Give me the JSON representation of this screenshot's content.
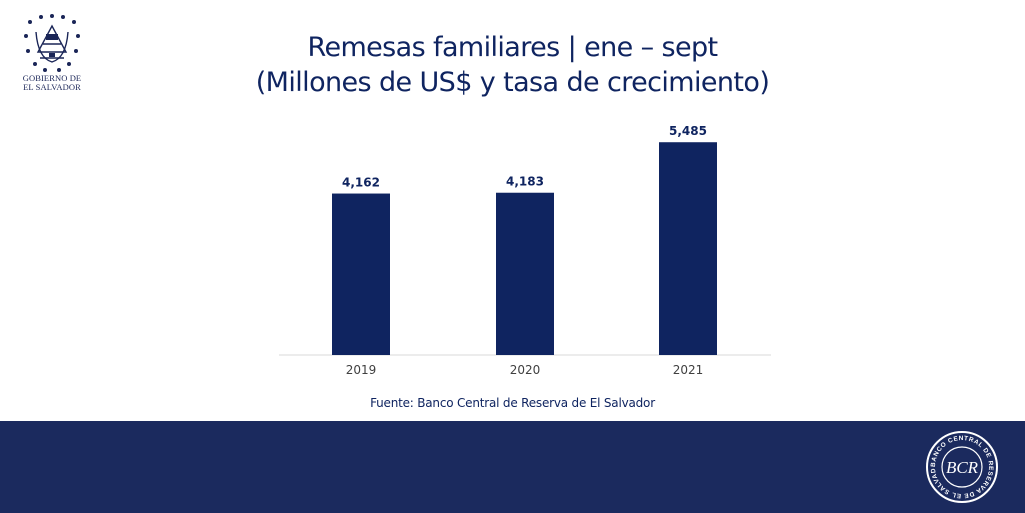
{
  "header": {
    "logo_line1": "GOBIERNO DE",
    "logo_line2": "EL SALVADOR"
  },
  "title_line1": "Remesas familiares | ene – sept",
  "title_line2": "(Millones de US$ y tasa de crecimiento)",
  "source": "Fuente: Banco Central de Reserva de El Salvador",
  "colors": {
    "bar": "#0f2460",
    "footer": "#1b2a5e",
    "axis": "#d9d9d9"
  },
  "seal": {
    "text": "BANCO CENTRAL DE RESERVA DE EL SALVADOR",
    "monogram": "BCR"
  },
  "chart_data": {
    "type": "bar",
    "categories": [
      "2019",
      "2020",
      "2021"
    ],
    "values": [
      4162,
      4183,
      5485
    ],
    "value_labels": [
      "4,162",
      "4,183",
      "5,485"
    ],
    "ylim": [
      0,
      5800
    ],
    "grid": false,
    "legend": "none"
  }
}
